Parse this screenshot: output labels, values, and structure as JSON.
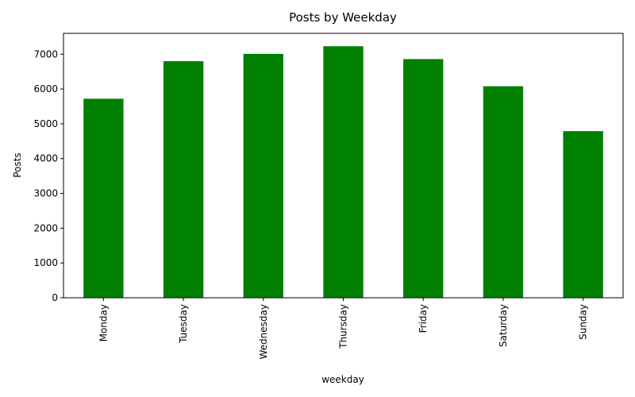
{
  "chart_data": {
    "type": "bar",
    "title": "Posts by Weekday",
    "xlabel": "weekday",
    "ylabel": "Posts",
    "categories": [
      "Monday",
      "Tuesday",
      "Wednesday",
      "Thursday",
      "Friday",
      "Saturday",
      "Sunday"
    ],
    "values": [
      5720,
      6800,
      7010,
      7230,
      6860,
      6080,
      4790
    ],
    "ylim": [
      0,
      7600
    ],
    "yticks": [
      0,
      1000,
      2000,
      3000,
      4000,
      5000,
      6000,
      7000
    ],
    "bar_color": "#008000",
    "grid": false,
    "legend": "none"
  }
}
